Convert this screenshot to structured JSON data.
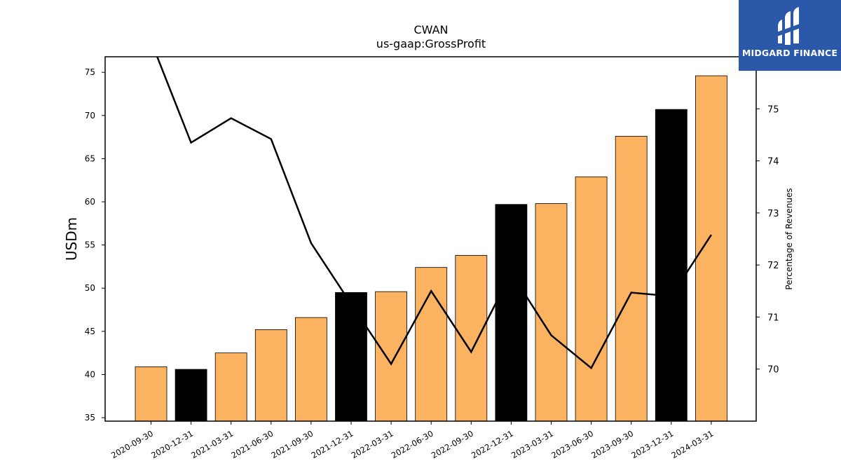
{
  "brand": {
    "name": "MIDGARD FINANCE",
    "bg_color": "#2b58a8"
  },
  "chart_data": {
    "type": "bar",
    "title": "CWAN",
    "subtitle": "us-gaap:GrossProfit",
    "ylabel": "USDm",
    "y2label": "Percentage of Revenues",
    "ylim": [
      34.6,
      76.8
    ],
    "y2lim": [
      69.0,
      76.0
    ],
    "yticks": [
      35,
      40,
      45,
      50,
      55,
      60,
      65,
      70,
      75
    ],
    "y2ticks": [
      70,
      71,
      72,
      73,
      74,
      75
    ],
    "categories": [
      "2020-09-30",
      "2020-12-31",
      "2021-03-31",
      "2021-06-30",
      "2021-09-30",
      "2021-12-31",
      "2022-03-31",
      "2022-06-30",
      "2022-09-30",
      "2022-12-31",
      "2023-03-31",
      "2023-06-30",
      "2023-09-30",
      "2023-12-31",
      "2024-03-31"
    ],
    "series": [
      {
        "type": "bar",
        "axis": "left",
        "values": [
          40.9,
          40.6,
          42.5,
          45.2,
          46.6,
          49.5,
          49.6,
          52.4,
          53.8,
          59.7,
          59.8,
          62.9,
          67.6,
          70.7,
          74.6
        ],
        "colors": [
          "#fbb261",
          "#000000",
          "#fbb261",
          "#fbb261",
          "#fbb261",
          "#000000",
          "#fbb261",
          "#fbb261",
          "#fbb261",
          "#000000",
          "#fbb261",
          "#fbb261",
          "#fbb261",
          "#000000",
          "#fbb261"
        ]
      },
      {
        "type": "line",
        "axis": "right",
        "color": "#000000",
        "values": [
          76.3,
          74.35,
          74.82,
          74.42,
          72.42,
          71.25,
          70.1,
          71.5,
          70.33,
          71.85,
          70.65,
          70.02,
          71.47,
          71.4,
          72.58
        ]
      }
    ],
    "grid": false,
    "legend": "none"
  }
}
